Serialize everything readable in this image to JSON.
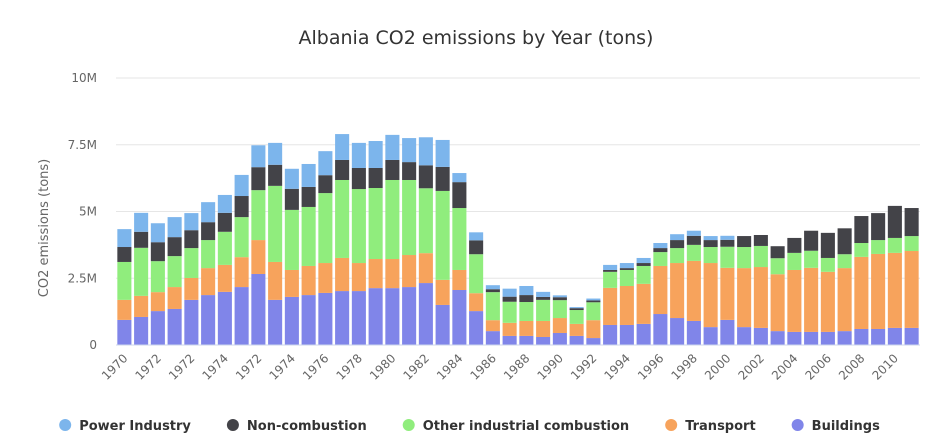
{
  "chart_data": {
    "type": "stacked_bar",
    "title": "Albania CO2 emissions by Year (tons)",
    "y_label": "CO2 emissions (tons)",
    "categories": [
      "1970",
      null,
      "1972",
      null,
      "1972",
      null,
      "1974",
      null,
      "1972",
      null,
      "1974",
      null,
      "1976",
      null,
      "1978",
      null,
      "1980",
      null,
      "1982",
      null,
      "1984",
      null,
      "1986",
      null,
      "1988",
      null,
      "1990",
      null,
      "1992",
      null,
      "1994",
      null,
      "1996",
      null,
      "1998",
      null,
      "2000",
      null,
      "2002",
      null,
      "2004",
      null,
      "2006",
      null,
      "2008",
      null,
      "2010",
      null
    ],
    "ylim": [
      0,
      10000000
    ],
    "yticks": [
      0,
      {
        "value": 2500000,
        "label": "2.5M"
      },
      {
        "value": 5000000,
        "label": "5M"
      },
      {
        "value": 7500000,
        "label": "7.5M"
      },
      {
        "value": 10000000,
        "label": "10M"
      }
    ],
    "grid": true,
    "legend": "bottom",
    "series": [
      {
        "name": "Power Industry",
        "color": "#7cb5ec",
        "values": [
          670000,
          710000,
          710000,
          750000,
          640000,
          750000,
          670000,
          790000,
          820000,
          820000,
          750000,
          860000,
          900000,
          970000,
          940000,
          1010000,
          940000,
          900000,
          1050000,
          1010000,
          340000,
          300000,
          150000,
          300000,
          340000,
          190000,
          70000,
          40000,
          70000,
          190000,
          190000,
          190000,
          190000,
          220000,
          190000,
          150000,
          150000,
          0,
          0,
          0,
          0,
          0,
          0,
          0,
          0,
          0,
          0,
          0
        ]
      },
      {
        "name": "Non-combustion",
        "color": "#434348",
        "values": [
          560000,
          600000,
          710000,
          710000,
          670000,
          670000,
          710000,
          790000,
          860000,
          790000,
          790000,
          750000,
          670000,
          750000,
          790000,
          750000,
          750000,
          670000,
          860000,
          900000,
          970000,
          520000,
          110000,
          190000,
          260000,
          110000,
          110000,
          70000,
          70000,
          70000,
          70000,
          110000,
          150000,
          300000,
          340000,
          260000,
          260000,
          410000,
          410000,
          450000,
          560000,
          750000,
          940000,
          970000,
          1010000,
          1010000,
          1200000,
          1050000
        ]
      },
      {
        "name": "Other industrial combustion",
        "color": "#90ed7d",
        "values": [
          1420000,
          1800000,
          1160000,
          1160000,
          1120000,
          1050000,
          1240000,
          1500000,
          1870000,
          2850000,
          2250000,
          2210000,
          2620000,
          2920000,
          2770000,
          2660000,
          2960000,
          2810000,
          2430000,
          3330000,
          2320000,
          1460000,
          1050000,
          790000,
          710000,
          790000,
          670000,
          520000,
          670000,
          600000,
          600000,
          670000,
          520000,
          560000,
          600000,
          600000,
          790000,
          790000,
          790000,
          600000,
          640000,
          640000,
          520000,
          520000,
          520000,
          520000,
          560000,
          560000
        ]
      },
      {
        "name": "Transport",
        "color": "#f7a35c",
        "values": [
          750000,
          790000,
          710000,
          820000,
          820000,
          1010000,
          1010000,
          1120000,
          1270000,
          1420000,
          1010000,
          1090000,
          1120000,
          1240000,
          1050000,
          1090000,
          1090000,
          1200000,
          1120000,
          940000,
          750000,
          670000,
          410000,
          490000,
          560000,
          600000,
          560000,
          450000,
          670000,
          1390000,
          1460000,
          1500000,
          1800000,
          2060000,
          2250000,
          2400000,
          1950000,
          2210000,
          2280000,
          2130000,
          2320000,
          2400000,
          2250000,
          2360000,
          2700000,
          2810000,
          2810000,
          2880000
        ]
      },
      {
        "name": "Buildings",
        "color": "#8085e9",
        "values": [
          940000,
          1050000,
          1270000,
          1350000,
          1690000,
          1870000,
          1990000,
          2170000,
          2660000,
          1690000,
          1800000,
          1870000,
          1950000,
          2020000,
          2020000,
          2130000,
          2130000,
          2170000,
          2320000,
          1500000,
          2060000,
          1270000,
          520000,
          340000,
          340000,
          300000,
          450000,
          340000,
          260000,
          750000,
          750000,
          790000,
          1160000,
          1010000,
          900000,
          670000,
          940000,
          670000,
          640000,
          520000,
          490000,
          490000,
          490000,
          520000,
          600000,
          600000,
          640000,
          640000
        ]
      }
    ]
  }
}
